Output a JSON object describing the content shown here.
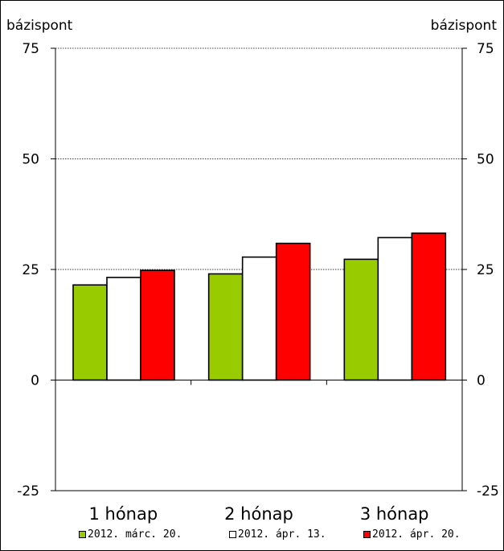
{
  "chart_data": {
    "type": "bar",
    "y_unit_left": "bázispont",
    "y_unit_right": "bázispont",
    "ylim": [
      -25,
      75
    ],
    "yticks": [
      "-25",
      "0",
      "25",
      "50",
      "75"
    ],
    "categories": [
      "1 hónap",
      "2 hónap",
      "3 hónap"
    ],
    "series": [
      {
        "name": "2012. márc. 20.",
        "color": "#99cc00",
        "values": [
          21.5,
          24.0,
          27.3
        ]
      },
      {
        "name": "2012. ápr. 13.",
        "color": "#ffffff",
        "values": [
          23.2,
          27.8,
          32.2
        ]
      },
      {
        "name": "2012. ápr. 20.",
        "color": "#ff0000",
        "values": [
          24.8,
          30.9,
          33.2
        ]
      }
    ],
    "gridlines": [
      25,
      50,
      75
    ],
    "legend_position": "bottom"
  }
}
